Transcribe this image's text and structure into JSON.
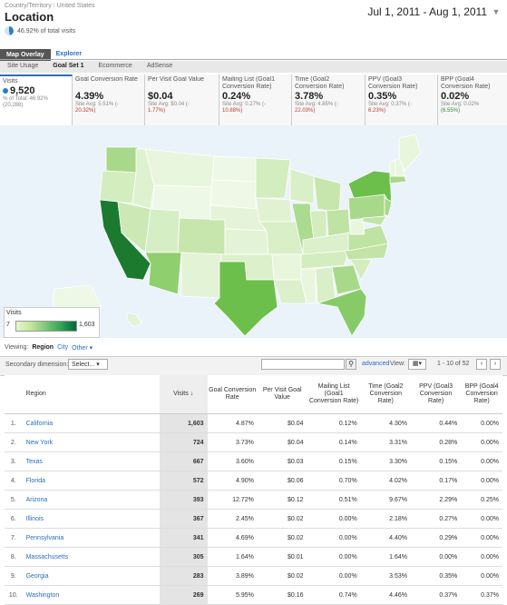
{
  "header": {
    "breadcrumb": "Country/Territory : United States",
    "title": "Location",
    "percent_text": "46.92% of total visits",
    "date_range": "Jul 1, 2011 - Aug 1, 2011"
  },
  "view_tabs": [
    "Map Overlay",
    "Explorer"
  ],
  "subtabs": [
    "Site Usage",
    "Goal Set 1",
    "Ecommerce",
    "AdSense"
  ],
  "metrics": [
    {
      "label": "Visits",
      "value": "9,520",
      "sub": "% of Total: 46.92%",
      "sub2": "(20,288)",
      "change": ""
    },
    {
      "label": "Goal Conversion Rate",
      "value": "4.39%",
      "sub": "Site Avg: 5.51% (-",
      "change": "20.32%)",
      "dir": "neg"
    },
    {
      "label": "Per Visit Goal Value",
      "value": "$0.04",
      "sub": "Site Avg: $0.04 (-",
      "change": "1.77%)",
      "dir": "neg"
    },
    {
      "label": "Mailing List (Goal1 Conversion Rate)",
      "value": "0.24%",
      "sub": "Site Avg: 0.27% (-",
      "change": "10.88%)",
      "dir": "neg"
    },
    {
      "label": "Time (Goal2 Conversion Rate)",
      "value": "3.78%",
      "sub": "Site Avg: 4.85% (-",
      "change": "22.03%)",
      "dir": "neg"
    },
    {
      "label": "PPV (Goal3 Conversion Rate)",
      "value": "0.35%",
      "sub": "Site Avg: 0.37% (-",
      "change": "6.23%)",
      "dir": "neg"
    },
    {
      "label": "BPP (Goal4 Conversion Rate)",
      "value": "0.02%",
      "sub": "Site Avg: 0.02%",
      "change": "(6.55%)",
      "dir": "pos"
    }
  ],
  "legend": {
    "title": "Visits",
    "min": "7",
    "max": "1,603"
  },
  "viewing": {
    "label": "Viewing:",
    "region": "Region",
    "city": "City",
    "other": "Other ▾"
  },
  "toolbar": {
    "secondary_label": "Secondary dimension:",
    "select_value": "Select... ▾",
    "advanced": "advanced",
    "view_label": "View:",
    "pager": "1 - 10 of 52"
  },
  "table": {
    "headers": [
      "Region",
      "Visits",
      "Goal Conversion Rate",
      "Per Visit Goal Value",
      "Mailing List (Goal1 Conversion Rate)",
      "Time (Goal2 Conversion Rate)",
      "PPV (Goal3 Conversion Rate)",
      "BPP (Goal4 Conversion Rate)"
    ],
    "rows": [
      [
        "1.",
        "California",
        "1,603",
        "4.87%",
        "$0.04",
        "0.12%",
        "4.30%",
        "0.44%",
        "0.00%"
      ],
      [
        "2.",
        "New York",
        "724",
        "3.73%",
        "$0.04",
        "0.14%",
        "3.31%",
        "0.28%",
        "0.00%"
      ],
      [
        "3.",
        "Texas",
        "667",
        "3.60%",
        "$0.03",
        "0.15%",
        "3.30%",
        "0.15%",
        "0.00%"
      ],
      [
        "4.",
        "Florida",
        "572",
        "4.90%",
        "$0.06",
        "0.70%",
        "4.02%",
        "0.17%",
        "0.00%"
      ],
      [
        "5.",
        "Arizona",
        "393",
        "12.72%",
        "$0.12",
        "0.51%",
        "9.67%",
        "2.29%",
        "0.25%"
      ],
      [
        "6.",
        "Illinois",
        "367",
        "2.45%",
        "$0.02",
        "0.00%",
        "2.18%",
        "0.27%",
        "0.00%"
      ],
      [
        "7.",
        "Pennsylvania",
        "341",
        "4.69%",
        "$0.02",
        "0.00%",
        "4.40%",
        "0.29%",
        "0.00%"
      ],
      [
        "8.",
        "Massachusetts",
        "305",
        "1.64%",
        "$0.01",
        "0.00%",
        "1.64%",
        "0.00%",
        "0.00%"
      ],
      [
        "9.",
        "Georgia",
        "283",
        "3.89%",
        "$0.02",
        "0.00%",
        "3.53%",
        "0.35%",
        "0.00%"
      ],
      [
        "10.",
        "Washington",
        "269",
        "5.95%",
        "$0.16",
        "0.74%",
        "4.46%",
        "0.37%",
        "0.37%"
      ]
    ]
  },
  "colors": {
    "accent": "#2a6ebb",
    "map_dark": "#006837",
    "map_light": "#e6f5d0",
    "negative": "#c0392b",
    "positive": "#2e8b2e"
  }
}
